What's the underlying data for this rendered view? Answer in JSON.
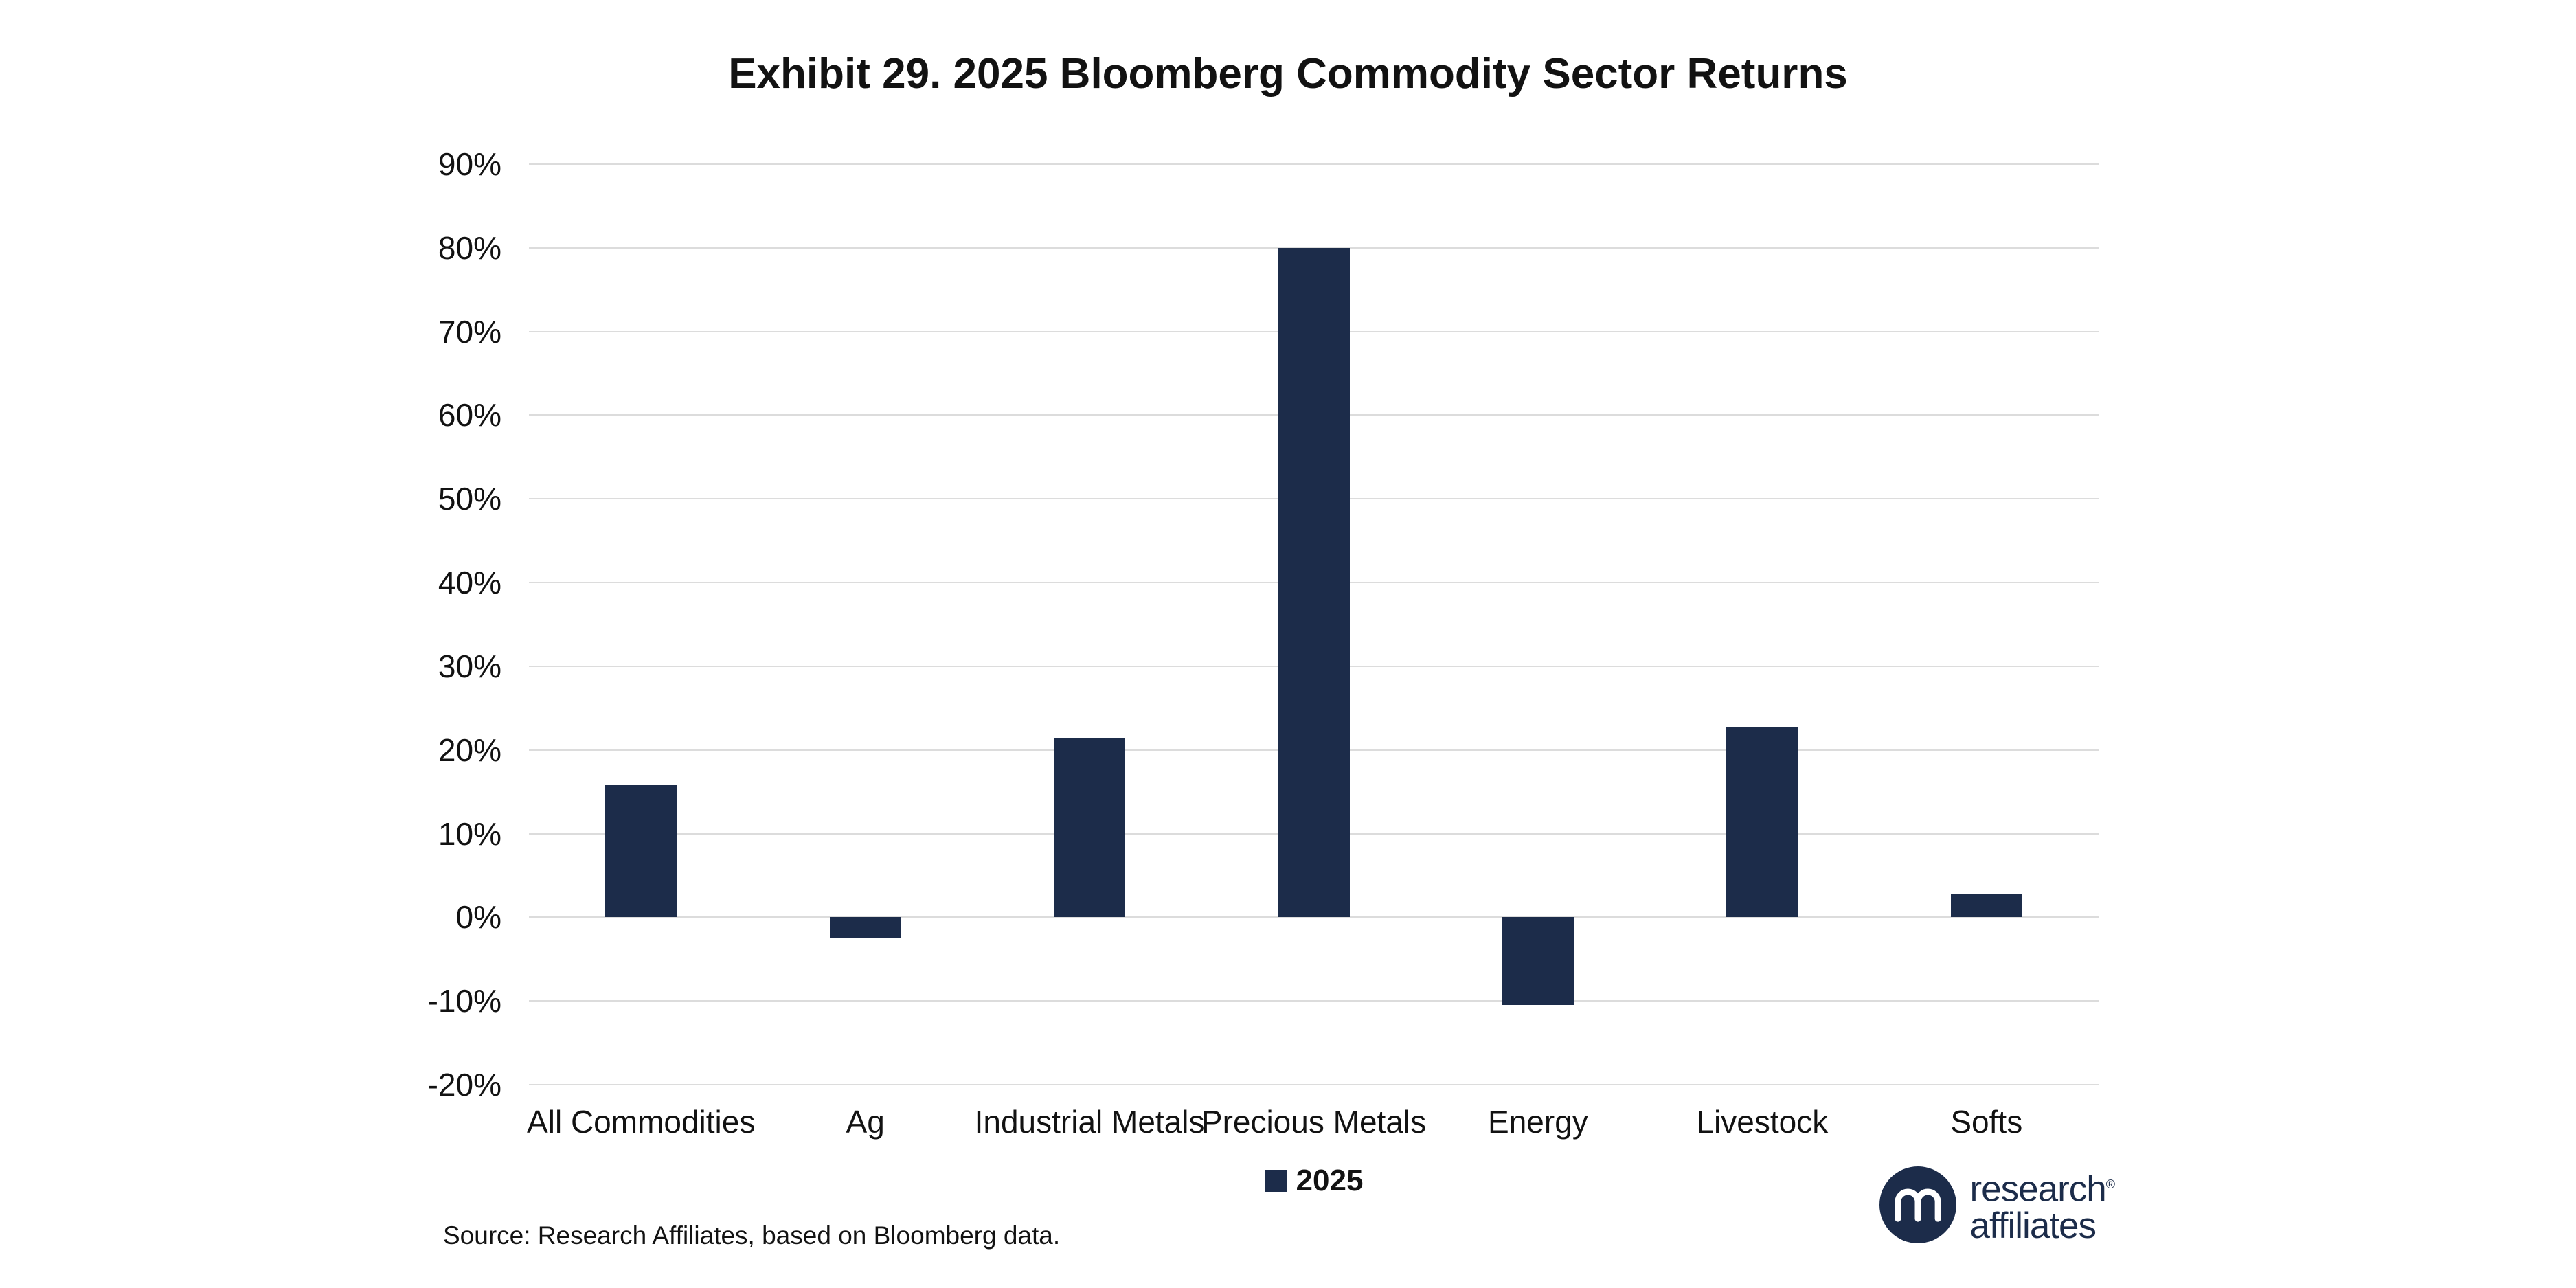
{
  "title": "Exhibit 29. 2025 Bloomberg Commodity Sector Returns",
  "source": "Source: Research Affiliates, based on Bloomberg data.",
  "legend": {
    "label": "2025"
  },
  "logo": {
    "line1": "research",
    "line2": "affiliates",
    "registered": "®"
  },
  "colors": {
    "bar": "#1C2C4A",
    "grid": "#DCDCDC",
    "text": "#121212",
    "background": "#FFFFFF"
  },
  "chart_data": {
    "type": "bar",
    "title": "Exhibit 29. 2025 Bloomberg Commodity Sector Returns",
    "categories": [
      "All Commodities",
      "Ag",
      "Industrial Metals",
      "Precious Metals",
      "Energy",
      "Livestock",
      "Softs"
    ],
    "series": [
      {
        "name": "2025",
        "values": [
          15.8,
          -2.5,
          21.4,
          80.0,
          -10.5,
          22.8,
          2.8
        ]
      }
    ],
    "xlabel": "",
    "ylabel": "",
    "ylim": [
      -20,
      90
    ],
    "ytick_step": 10,
    "ytick_labels": [
      "90%",
      "80%",
      "70%",
      "60%",
      "50%",
      "40%",
      "30%",
      "20%",
      "10%",
      "0%",
      "-10%",
      "-20%"
    ],
    "grid": true,
    "legend_position": "bottom"
  }
}
